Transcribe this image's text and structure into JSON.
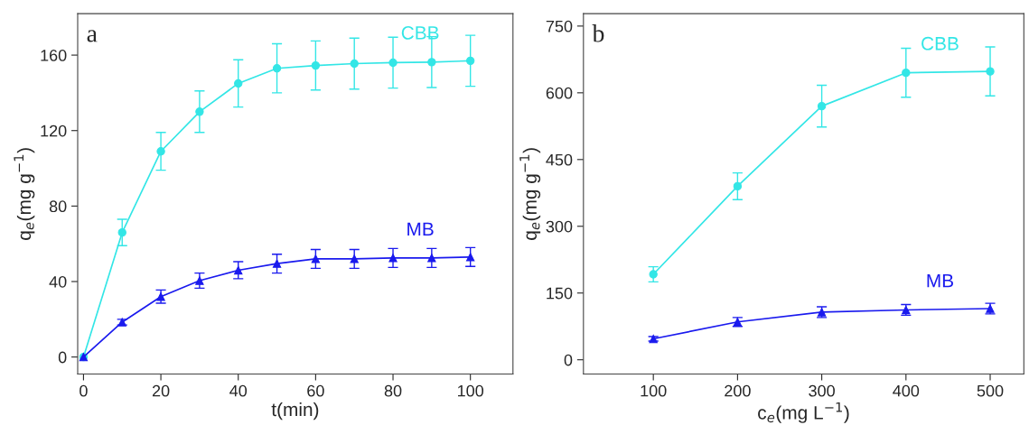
{
  "chart_data": [
    {
      "type": "line",
      "annotations": [
        "a"
      ],
      "xlabel": "t(min)",
      "ylabel": "q$_{e}$(mg g$^{−1}$)",
      "x": [
        0,
        10,
        20,
        30,
        40,
        50,
        60,
        70,
        80,
        90,
        100
      ],
      "series": [
        {
          "name": "CBB",
          "color": "#33e6e6",
          "marker": "circle",
          "values": [
            0,
            66,
            109,
            130,
            145,
            153,
            154.5,
            155.5,
            156,
            156.3,
            157
          ],
          "errors": [
            null,
            7,
            10,
            11,
            12.5,
            13,
            13,
            13.5,
            13.5,
            13.5,
            13.5
          ]
        },
        {
          "name": "MB",
          "color": "#1a1aee",
          "marker": "triangle",
          "values": [
            0,
            18.5,
            32,
            40.5,
            46,
            49.5,
            52,
            52,
            52.5,
            52.5,
            53
          ],
          "errors": [
            null,
            1.5,
            3.5,
            4,
            4.5,
            5,
            5,
            5,
            5,
            5,
            5
          ]
        }
      ],
      "xlim": [
        -1.5,
        111
      ],
      "ylim": [
        -9,
        182
      ],
      "xticks": [
        0,
        20,
        40,
        60,
        80,
        100
      ],
      "yticks": [
        0,
        40,
        80,
        120,
        160
      ],
      "legend": false,
      "grid": false
    },
    {
      "type": "line",
      "annotations": [
        "b"
      ],
      "xlabel": "c$_{e}$(mg L$^{−1}$)",
      "ylabel": "q$_{e}$(mg g$^{−1}$)",
      "x": [
        100,
        200,
        300,
        400,
        500
      ],
      "series": [
        {
          "name": "CBB",
          "color": "#33e6e6",
          "marker": "circle",
          "values": [
            192,
            390,
            570,
            645,
            648
          ],
          "errors": [
            17,
            30,
            47,
            55,
            55
          ]
        },
        {
          "name": "MB",
          "color": "#1a1aee",
          "marker": "triangle",
          "values": [
            47,
            85,
            107,
            112,
            115
          ],
          "errors": [
            5,
            10,
            12,
            12,
            12
          ]
        }
      ],
      "xlim": [
        17,
        540
      ],
      "ylim": [
        -32,
        778
      ],
      "xticks": [
        100,
        200,
        300,
        400,
        500
      ],
      "yticks": [
        0,
        150,
        300,
        450,
        600,
        750
      ],
      "legend": false,
      "grid": false
    }
  ]
}
